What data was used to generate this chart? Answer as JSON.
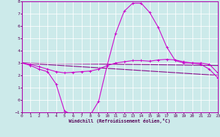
{
  "xlabel": "Windchill (Refroidissement éolien,°C)",
  "xlim": [
    0,
    23
  ],
  "ylim": [
    -1,
    8
  ],
  "yticks": [
    -1,
    0,
    1,
    2,
    3,
    4,
    5,
    6,
    7,
    8
  ],
  "xticks": [
    0,
    1,
    2,
    3,
    4,
    5,
    6,
    7,
    8,
    9,
    10,
    11,
    12,
    13,
    14,
    15,
    16,
    17,
    18,
    19,
    20,
    21,
    22,
    23
  ],
  "background_color": "#cceaea",
  "grid_color": "#ffffff",
  "line_color": "#cc00cc",
  "line_color2": "#880088",
  "line1_marker": {
    "x": [
      0,
      1,
      2,
      3,
      4,
      5,
      6,
      7,
      8,
      9,
      10,
      11,
      12,
      13,
      14,
      15,
      16,
      17,
      18,
      19,
      20,
      21,
      22,
      23
    ],
    "y": [
      3.0,
      2.8,
      2.5,
      2.3,
      1.3,
      -0.9,
      -1.2,
      -1.2,
      -1.25,
      -0.1,
      2.8,
      5.4,
      7.2,
      7.85,
      7.85,
      7.1,
      5.9,
      4.3,
      3.2,
      3.0,
      3.0,
      2.9,
      2.5,
      1.8
    ]
  },
  "line2_flat": {
    "x": [
      0,
      23
    ],
    "y": [
      3.0,
      2.8
    ]
  },
  "line3_mid": {
    "x": [
      0,
      1,
      2,
      3,
      4,
      5,
      6,
      7,
      8,
      9,
      10,
      11,
      12,
      13,
      14,
      15,
      16,
      17,
      18,
      19,
      20,
      21,
      22,
      23
    ],
    "y": [
      3.0,
      2.9,
      2.7,
      2.5,
      2.3,
      2.2,
      2.25,
      2.3,
      2.35,
      2.5,
      2.8,
      3.0,
      3.1,
      3.2,
      3.2,
      3.15,
      3.25,
      3.3,
      3.25,
      3.1,
      3.0,
      3.0,
      2.9,
      2.2
    ]
  },
  "line4_diag": {
    "x": [
      0,
      23
    ],
    "y": [
      3.0,
      2.0
    ]
  }
}
